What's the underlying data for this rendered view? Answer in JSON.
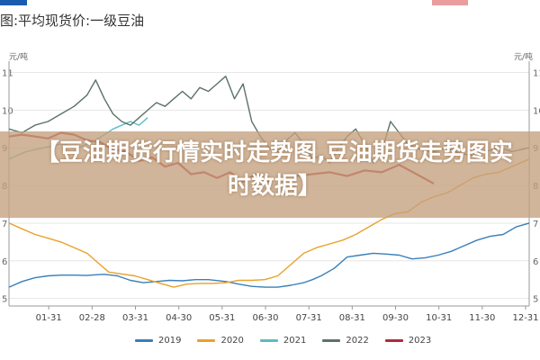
{
  "title_bar": {
    "title": "图:平均现货价:一级豆油"
  },
  "overlay": {
    "text": "【豆油期货行情实时走势图,豆油期货走势图实时数据】"
  },
  "chart_data": {
    "type": "line",
    "unit_left": "元/吨",
    "unit_right": "元/吨",
    "x_tick_labels": [
      "01-31",
      "02-28",
      "03-31",
      "04-30",
      "05-31",
      "06-30",
      "07-31",
      "08-31",
      "09-30",
      "10-31",
      "11-30",
      "12-31"
    ],
    "y_tick_labels": [
      "11",
      "10",
      "9",
      "8",
      "7",
      "6",
      "5"
    ],
    "y_tick_values": [
      11000,
      10000,
      9000,
      8000,
      7000,
      6000,
      5000
    ],
    "ylim": [
      4800,
      11300
    ],
    "colors": {
      "2019": "#3a7fb8",
      "2020": "#e8a12b",
      "2021": "#5bbcc2",
      "2022": "#5c7265",
      "2023": "#b0293d"
    },
    "series": [
      {
        "name": "2019",
        "x": [
          0.0,
          0.3,
          0.6,
          0.9,
          1.2,
          1.5,
          1.8,
          2.0,
          2.2,
          2.5,
          2.8,
          3.1,
          3.4,
          3.7,
          4.0,
          4.3,
          4.6,
          5.0,
          5.3,
          5.6,
          5.9,
          6.2,
          6.5,
          6.8,
          7.0,
          7.2,
          7.5,
          7.8,
          8.1,
          8.4,
          8.7,
          9.0,
          9.3,
          9.6,
          9.9,
          10.2,
          10.5,
          10.8,
          11.1,
          11.4,
          11.7,
          12.0
        ],
        "y": [
          5300,
          5450,
          5550,
          5600,
          5620,
          5620,
          5610,
          5630,
          5640,
          5600,
          5480,
          5420,
          5450,
          5480,
          5470,
          5500,
          5500,
          5450,
          5380,
          5320,
          5300,
          5300,
          5350,
          5420,
          5500,
          5600,
          5800,
          6100,
          6150,
          6200,
          6180,
          6150,
          6050,
          6080,
          6150,
          6250,
          6400,
          6550,
          6650,
          6700,
          6900,
          7000
        ]
      },
      {
        "name": "2020",
        "x": [
          0.0,
          0.3,
          0.6,
          0.9,
          1.2,
          1.5,
          1.8,
          2.1,
          2.3,
          2.6,
          2.9,
          3.2,
          3.5,
          3.8,
          4.1,
          4.4,
          4.7,
          5.0,
          5.3,
          5.6,
          5.9,
          6.2,
          6.5,
          6.8,
          7.1,
          7.4,
          7.7,
          8.0,
          8.3,
          8.6,
          8.9,
          9.2,
          9.5,
          9.8,
          10.1,
          10.4,
          10.7,
          11.0,
          11.3,
          11.6,
          12.0
        ],
        "y": [
          7000,
          6850,
          6700,
          6600,
          6500,
          6350,
          6200,
          5900,
          5700,
          5650,
          5600,
          5500,
          5400,
          5300,
          5380,
          5400,
          5400,
          5420,
          5480,
          5480,
          5500,
          5600,
          5900,
          6200,
          6350,
          6450,
          6550,
          6700,
          6900,
          7100,
          7250,
          7300,
          7550,
          7700,
          7800,
          8000,
          8200,
          8300,
          8350,
          8500,
          8700
        ]
      },
      {
        "name": "2021",
        "x": [
          0.0,
          0.4,
          0.8,
          1.2,
          1.6,
          2.0,
          2.4,
          2.8,
          3.0,
          3.2
        ],
        "y": [
          8700,
          8900,
          9000,
          9100,
          9000,
          9200,
          9500,
          9700,
          9600,
          9800
        ]
      },
      {
        "name": "2022",
        "x": [
          0.0,
          0.3,
          0.6,
          0.9,
          1.2,
          1.5,
          1.8,
          2.0,
          2.2,
          2.4,
          2.6,
          2.8,
          3.0,
          3.2,
          3.4,
          3.6,
          3.8,
          4.0,
          4.2,
          4.4,
          4.6,
          4.8,
          5.0,
          5.2,
          5.4,
          5.6,
          5.8,
          6.0,
          6.2,
          6.4,
          6.6,
          6.8,
          7.0,
          7.2,
          7.4,
          7.6,
          7.8,
          8.0,
          8.2,
          8.4,
          8.6,
          8.8,
          9.0,
          9.2,
          9.5,
          9.8,
          10.1,
          10.4,
          10.7,
          11.0,
          11.3,
          11.6,
          12.0
        ],
        "y": [
          9500,
          9400,
          9600,
          9700,
          9900,
          10100,
          10400,
          10800,
          10300,
          9900,
          9700,
          9600,
          9800,
          10000,
          10200,
          10100,
          10300,
          10500,
          10300,
          10600,
          10500,
          10700,
          10900,
          10300,
          10700,
          9700,
          9300,
          9000,
          8900,
          9200,
          9400,
          9100,
          8700,
          8800,
          8600,
          9000,
          9300,
          9500,
          9100,
          8600,
          8900,
          9700,
          9400,
          9100,
          8950,
          8900,
          9000,
          8850,
          8800,
          8900,
          9000,
          8900,
          9000
        ]
      },
      {
        "name": "2023",
        "x": [
          0.0,
          0.3,
          0.6,
          0.9,
          1.2,
          1.5,
          1.8,
          2.1,
          2.4,
          2.7,
          3.0,
          3.3,
          3.6,
          3.9,
          4.2,
          4.5,
          4.8,
          5.1,
          5.4,
          5.7,
          6.0
        ],
        "y": [
          9300,
          9350,
          9300,
          9250,
          9400,
          9350,
          9200,
          9150,
          8950,
          8900,
          8650,
          8750,
          8500,
          8600,
          8300,
          8350,
          8200,
          8350,
          8100,
          8300,
          8100
        ]
      },
      {
        "name": "2023",
        "x": [
          6.6,
          7.0,
          7.4,
          7.8,
          8.2,
          8.6,
          9.0,
          9.4,
          9.8
        ],
        "y": [
          8250,
          8300,
          8350,
          8250,
          8400,
          8350,
          8550,
          8300,
          8050
        ]
      }
    ],
    "legend": [
      "2019",
      "2020",
      "2021",
      "2022",
      "2023"
    ],
    "legend_position": "bottom"
  }
}
